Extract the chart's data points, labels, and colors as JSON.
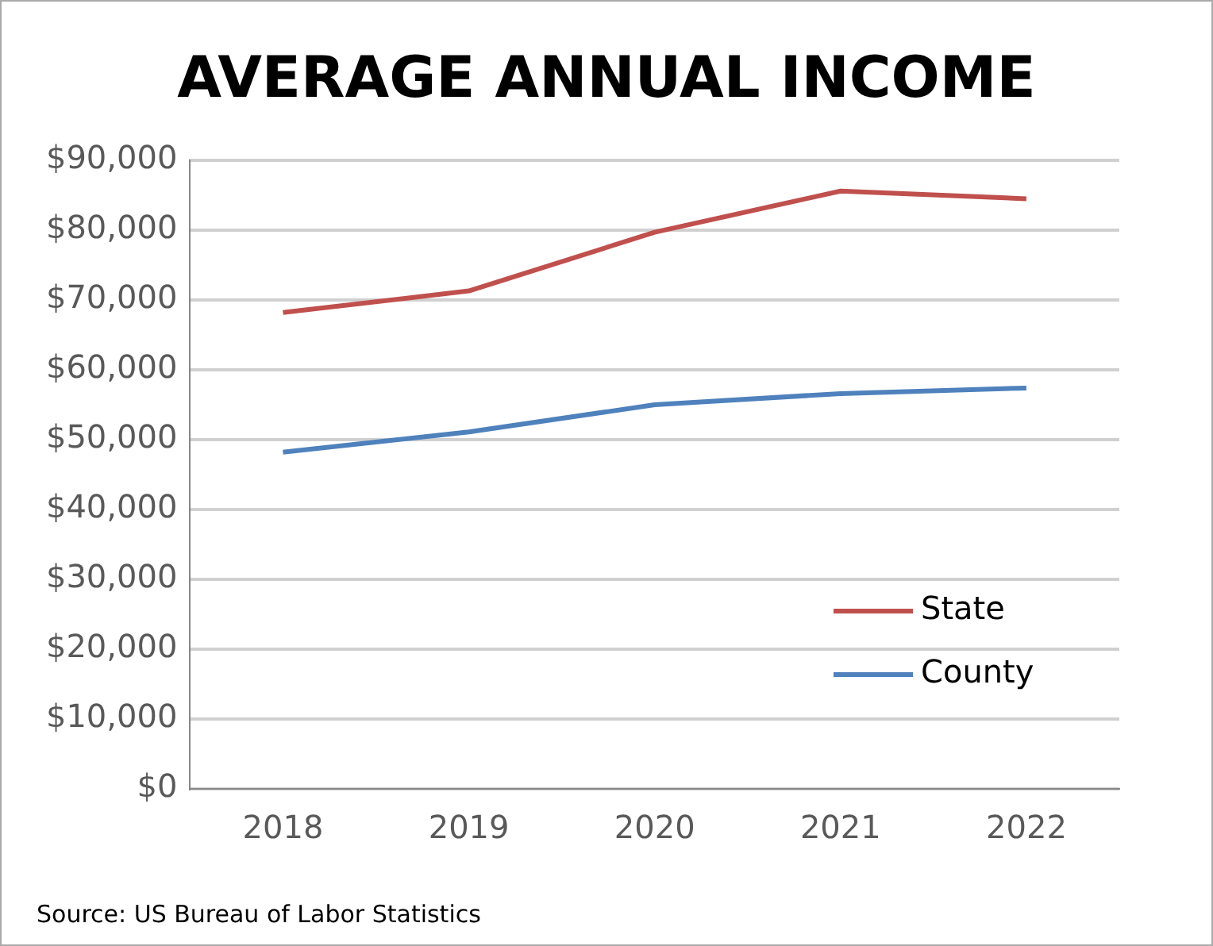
{
  "chart_data": {
    "type": "line",
    "title": "AVERAGE ANNUAL INCOME",
    "categories": [
      "2018",
      "2019",
      "2020",
      "2021",
      "2022"
    ],
    "series": [
      {
        "name": "State",
        "color": "#c0504d",
        "values": [
          68200,
          71300,
          79700,
          85600,
          84500
        ]
      },
      {
        "name": "County",
        "color": "#4f81bd",
        "values": [
          48200,
          51100,
          55000,
          56600,
          57400
        ]
      }
    ],
    "ylim": [
      0,
      90000
    ],
    "yticks": [
      {
        "value": 0,
        "label": "$0"
      },
      {
        "value": 10000,
        "label": "$10,000"
      },
      {
        "value": 20000,
        "label": "$20,000"
      },
      {
        "value": 30000,
        "label": "$30,000"
      },
      {
        "value": 40000,
        "label": "$40,000"
      },
      {
        "value": 50000,
        "label": "$50,000"
      },
      {
        "value": 60000,
        "label": "$60,000"
      },
      {
        "value": 70000,
        "label": "$70,000"
      },
      {
        "value": 80000,
        "label": "$80,000"
      },
      {
        "value": 90000,
        "label": "$90,000"
      }
    ],
    "grid": "y",
    "legend": "bottom right",
    "marker": "none",
    "line_style": "solid",
    "annotations": [
      "Source: US Bureau of Labor Statistics"
    ]
  }
}
